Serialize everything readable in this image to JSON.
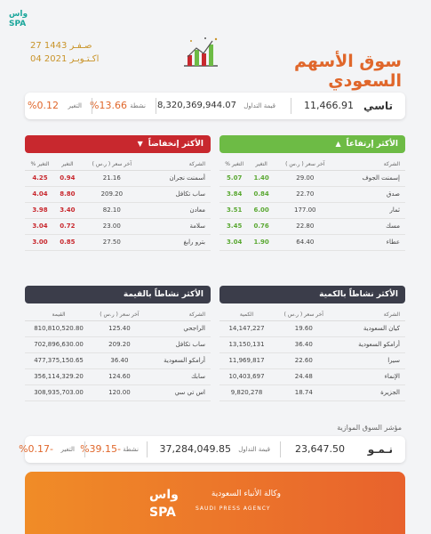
{
  "header": {
    "agency_logo": "wasSPA",
    "date_hijri": "27 صـفـر 1443",
    "date_gregorian": "04 اكـتـوبـر 2021",
    "title": "سوق الأسهم السعودي",
    "icon": "bar-chart-icon"
  },
  "tasi": {
    "name": "تاسي",
    "index_value": "11,466.91",
    "turnover_value": "8,320,369,944.07",
    "turnover_label": "قيمة التداول",
    "activity_value": "%13.66",
    "activity_label": "نشطة",
    "change_value": "%0.12",
    "change_label": "التغير"
  },
  "gainers": {
    "title": "الأكثر إرتفاعاً",
    "headers": [
      "الشركة",
      "آخر سعر ( ر.س )",
      "التغير",
      "التغير %"
    ],
    "rows": [
      [
        "إسمنت الجوف",
        "29.00",
        "1.40",
        "5.07"
      ],
      [
        "صدق",
        "22.70",
        "0.84",
        "3.84"
      ],
      [
        "ثمار",
        "177.00",
        "6.00",
        "3.51"
      ],
      [
        "مسك",
        "22.80",
        "0.76",
        "3.45"
      ],
      [
        "عطاء",
        "64.40",
        "1.90",
        "3.04"
      ]
    ]
  },
  "losers": {
    "title": "الأكثر إنخفاضاً",
    "headers": [
      "الشركة",
      "آخر سعر ( ر.س )",
      "التغير",
      "التغير %"
    ],
    "rows": [
      [
        "أسمنت نجران",
        "21.16",
        "0.94",
        "4.25"
      ],
      [
        "ساب تكافل",
        "209.20",
        "8.80",
        "4.04"
      ],
      [
        "معادن",
        "82.10",
        "3.40",
        "3.98"
      ],
      [
        "سلامة",
        "23.00",
        "0.72",
        "3.04"
      ],
      [
        "بترو رابغ",
        "27.50",
        "0.85",
        "3.00"
      ]
    ]
  },
  "by_quantity": {
    "title": "الأكثر نشاطاً بالكمية",
    "headers": [
      "الشركة",
      "آخر سعر ( ر.س )",
      "الكمية"
    ],
    "rows": [
      [
        "كيان السعودية",
        "19.60",
        "14,147,227"
      ],
      [
        "أرامكو السعودية",
        "36.40",
        "13,150,131"
      ],
      [
        "سيرا",
        "22.60",
        "11,969,817"
      ],
      [
        "الإنماء",
        "24.48",
        "10,403,697"
      ],
      [
        "الجزيرة",
        "18.74",
        "9,820,278"
      ]
    ]
  },
  "by_value": {
    "title": "الأكثر نشاطاً بالقيمة",
    "headers": [
      "الشركة",
      "آخر سعر ( ر.س )",
      "القيمة"
    ],
    "rows": [
      [
        "الراجحي",
        "125.40",
        "810,810,520.80"
      ],
      [
        "ساب تكافل",
        "209.20",
        "702,896,630.00"
      ],
      [
        "أرامكو السعودية",
        "36.40",
        "477,375,150.65"
      ],
      [
        "سابك",
        "124.60",
        "356,114,329.20"
      ],
      [
        "اس تي سي",
        "120.00",
        "308,935,703.00"
      ]
    ]
  },
  "parallel": {
    "label": "مؤشر السوق الموازية",
    "name": "نـمـو",
    "index_value": "23,647.50",
    "turnover_value": "37,284,049.85",
    "turnover_label": "قيمة التداول",
    "activity_value": "%39.15-",
    "activity_label": "نشطة",
    "change_value": "%0.17-",
    "change_label": "التغير"
  },
  "footer": {
    "logo_text": "wasSPA",
    "agency_ar": "وكالة الأنباء السعودية",
    "agency_en": "SAUDI PRESS AGENCY"
  },
  "colors": {
    "accent": "#e0672b",
    "gold": "#c9942a",
    "green": "#6dbb45",
    "red": "#c8282e",
    "dark": "#3b3d4a"
  }
}
